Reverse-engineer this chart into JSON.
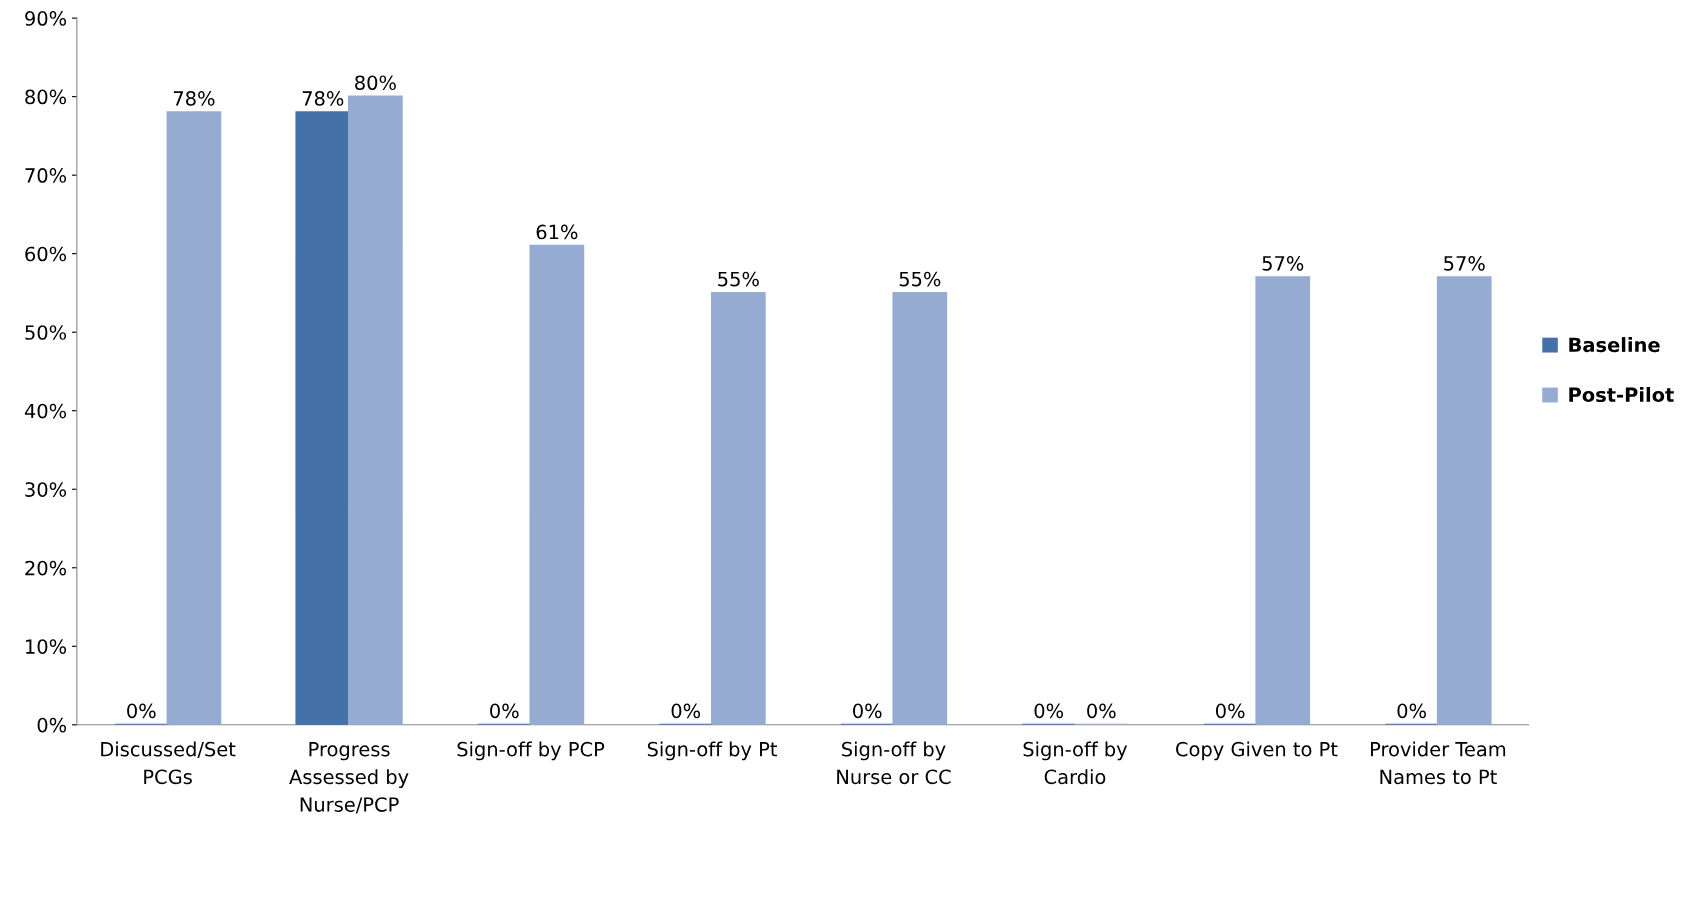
{
  "chart_data": {
    "type": "bar",
    "categories": [
      "Discussed/Set\nPCGs",
      "Progress\nAssessed by\nNurse/PCP",
      "Sign-off by PCP",
      "Sign-off by Pt",
      "Sign-off by\nNurse or CC",
      "Sign-off by\nCardio",
      "Copy Given to Pt",
      "Provider Team\nNames to Pt"
    ],
    "series": [
      {
        "name": "Baseline",
        "color": "#4472a8",
        "values": [
          0,
          78,
          0,
          0,
          0,
          0,
          0,
          0
        ],
        "value_labels": [
          "0%",
          "78%",
          "0%",
          "0%",
          "0%",
          "0%",
          "0%",
          "0%"
        ]
      },
      {
        "name": "Post-Pilot",
        "color": "#95abd2",
        "values": [
          78,
          80,
          61,
          55,
          55,
          0,
          57,
          57
        ],
        "value_labels": [
          "78%",
          "80%",
          "61%",
          "55%",
          "55%",
          "0%",
          "57%",
          "57%"
        ]
      }
    ],
    "ylim": [
      0,
      90
    ],
    "yticks": [
      {
        "value": 0,
        "label": "0%"
      },
      {
        "value": 10,
        "label": "10%"
      },
      {
        "value": 20,
        "label": "20%"
      },
      {
        "value": 30,
        "label": "30%"
      },
      {
        "value": 40,
        "label": "40%"
      },
      {
        "value": 50,
        "label": "50%"
      },
      {
        "value": 60,
        "label": "60%"
      },
      {
        "value": 70,
        "label": "70%"
      },
      {
        "value": 80,
        "label": "80%"
      },
      {
        "value": 90,
        "label": "90%"
      }
    ],
    "grid": false,
    "legend": "right"
  }
}
